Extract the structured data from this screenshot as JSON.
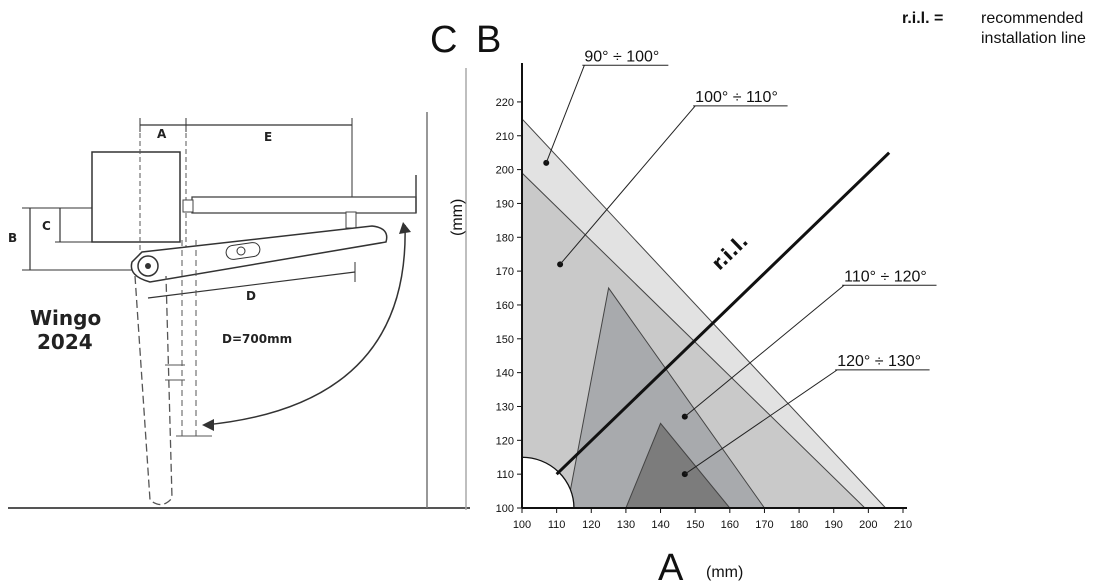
{
  "left_diagram": {
    "product_line1": "Wingo",
    "product_line2": "2024",
    "dim_a": "A",
    "dim_e": "E",
    "dim_b": "B",
    "dim_c": "C",
    "dim_d": "D",
    "d_value": "D=700mm"
  },
  "header": {
    "label_c": "C",
    "label_b": "B",
    "legend_abbr": "r.i.l. =",
    "legend_line1": "recommended",
    "legend_line2": "installation line"
  },
  "chart_data": {
    "type": "area",
    "xlabel_letter": "A",
    "xlabel_unit": "(mm)",
    "ylabel_unit": "(mm)",
    "xlim": [
      100,
      210
    ],
    "ylim": [
      100,
      225
    ],
    "x_ticks": [
      100,
      110,
      120,
      130,
      140,
      150,
      160,
      170,
      180,
      190,
      200,
      210
    ],
    "y_ticks": [
      100,
      110,
      120,
      130,
      140,
      150,
      160,
      170,
      180,
      190,
      200,
      210,
      220
    ],
    "series": [
      {
        "name": "90° ÷ 100°",
        "color": "#e2e2e2",
        "polygon": [
          [
            100,
            215
          ],
          [
            100,
            100
          ],
          [
            205,
            100
          ]
        ],
        "marker": [
          107,
          202
        ],
        "label_at": [
          118,
          232
        ]
      },
      {
        "name": "100° ÷ 110°",
        "color": "#c9c9c9",
        "polygon": [
          [
            100,
            199
          ],
          [
            100,
            100
          ],
          [
            199,
            100
          ]
        ],
        "marker": [
          111,
          172
        ],
        "label_at": [
          150,
          220
        ]
      },
      {
        "name": "110° ÷ 120°",
        "color": "#a8aaad",
        "polygon": [
          [
            113,
            100
          ],
          [
            125,
            165
          ],
          [
            170,
            100
          ]
        ],
        "marker": [
          147,
          127
        ],
        "label_at": [
          193,
          167
        ]
      },
      {
        "name": "120° ÷ 130°",
        "color": "#7c7c7c",
        "polygon": [
          [
            130,
            100
          ],
          [
            140,
            125
          ],
          [
            160,
            100
          ]
        ],
        "marker": [
          147,
          110
        ],
        "label_at": [
          191,
          142
        ]
      }
    ],
    "recommended_line": {
      "label": "r.i.l.",
      "from": [
        110,
        110
      ],
      "to": [
        206,
        205
      ],
      "label_at": [
        157,
        170
      ]
    },
    "excluded_quadrant_radius": 15
  }
}
